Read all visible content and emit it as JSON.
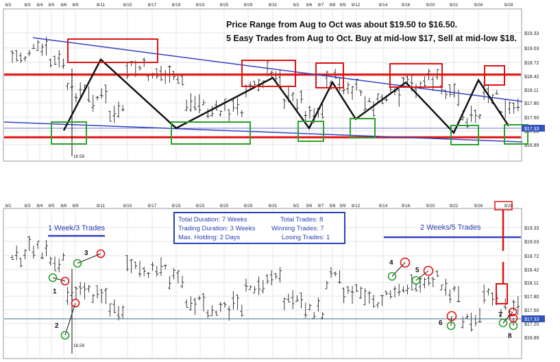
{
  "chart_data": [
    {
      "type": "candlestick",
      "date_ticks": [
        "8/2",
        "8/3",
        "8/4",
        "8/5",
        "8/6",
        "8/9",
        "8/11",
        "8/15",
        "8/17",
        "8/19",
        "8/23",
        "8/25",
        "8/29",
        "8/31",
        "9/2",
        "9/6",
        "9/7",
        "9/8",
        "9/9",
        "9/12",
        "9/14",
        "9/16",
        "9/20",
        "9/22",
        "9/26",
        "9/28"
      ],
      "y_ticks": [
        "$19.33",
        "$19.03",
        "$18.72",
        "$18.42",
        "$18.11",
        "$17.80",
        "$17.50",
        "$17.20",
        "$16.89"
      ],
      "ylim": [
        16.75,
        19.45
      ],
      "last_price_label": "$17.33",
      "last_price": 17.33,
      "low_label": "16.58",
      "annotations": [
        "Price Range from Aug to Oct was about $19.50 to $16.50.",
        "5 Easy Trades from Aug to Oct. Buy at mid-low $17, Sell at mid-low $18."
      ],
      "resistance_level": 18.42,
      "support_level": 17.05,
      "zigzag_x": [
        "8/6",
        "8/11",
        "8/19",
        "8/31",
        "9/6",
        "9/8",
        "9/12",
        "9/16",
        "9/22",
        "9/26",
        "9/28"
      ],
      "zigzag_y": [
        17.2,
        18.75,
        17.25,
        18.35,
        17.25,
        18.25,
        17.45,
        18.25,
        17.15,
        18.3,
        17.3
      ]
    },
    {
      "type": "candlestick",
      "date_ticks": [
        "8/2",
        "8/3",
        "8/4",
        "8/5",
        "8/6",
        "8/9",
        "8/11",
        "8/15",
        "8/17",
        "8/19",
        "8/23",
        "8/25",
        "8/29",
        "8/31",
        "9/2",
        "9/6",
        "9/7",
        "9/8",
        "9/9",
        "9/12",
        "9/14",
        "9/16",
        "9/20",
        "9/22",
        "9/26",
        "9/28"
      ],
      "highlighted_tick": "9/28",
      "y_ticks": [
        "$19.33",
        "$19.03",
        "$18.72",
        "$18.42",
        "$18.11",
        "$17.80",
        "$17.50",
        "$17.20",
        "$16.89"
      ],
      "ylim": [
        16.75,
        19.45
      ],
      "last_price_label": "$17.33",
      "last_price": 17.33,
      "low_label": "16.58",
      "left_label": "1 Week/3 Trades",
      "right_label": "2 Weeks/5 Trades",
      "stats": {
        "total_duration": "Total Duration: 7 Weeks",
        "trading_duration": "Trading Duration: 3 Weeks",
        "max_holding": "Max. Holding: 2 Days",
        "total_trades": "Total Trades: 8",
        "winning_trades": "Winning Trades: 7",
        "losing_trades": "Losing Trades: 1"
      },
      "trade_labels": [
        "1",
        "2",
        "3",
        "4",
        "5",
        "6",
        "7",
        "8"
      ]
    }
  ],
  "colors": {
    "resistance": "#e01010",
    "trend": "#3040c0",
    "buy": "#2aa02a",
    "sell": "#e01010",
    "zigzag": "#000000",
    "grid": "#d4d4d4",
    "price_badge": "#3355bb"
  }
}
